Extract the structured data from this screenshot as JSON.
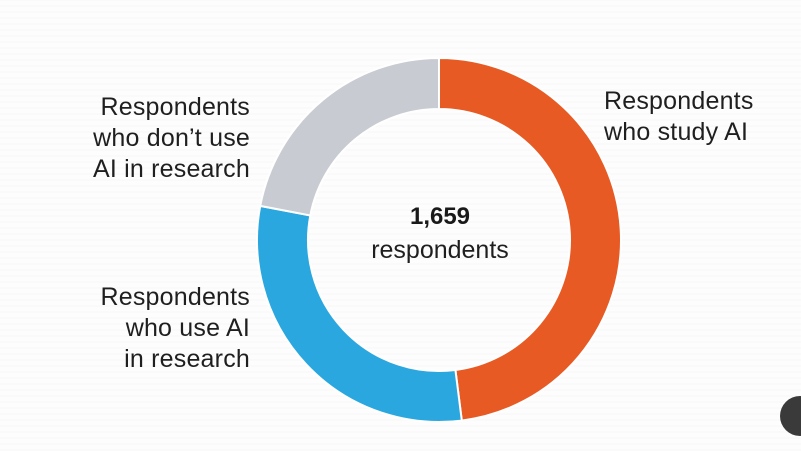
{
  "chart_data": {
    "type": "pie",
    "donut": true,
    "center_value": "1,659",
    "center_label": "respondents",
    "slices": [
      {
        "label": "Respondents\nwho study AI",
        "value": 48,
        "color": "#e85a24"
      },
      {
        "label": "Respondents\nwho use AI\nin research",
        "value": 30,
        "color": "#2ba7e0"
      },
      {
        "label": "Respondents\nwho don’t use\nAI in research",
        "value": 22,
        "color": "#c8cbd2"
      }
    ],
    "start_angle_deg": 0,
    "direction": "clockwise",
    "legend": "none"
  }
}
